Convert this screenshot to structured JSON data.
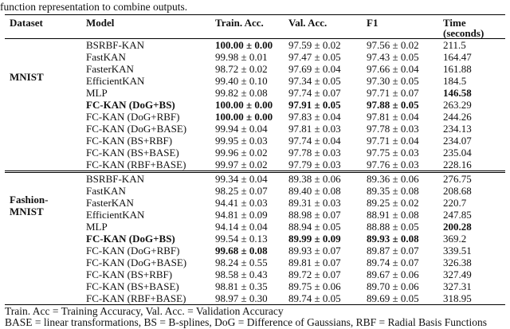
{
  "caption": "function representation to combine outputs.",
  "columns": [
    {
      "label": "Dataset"
    },
    {
      "label": "Model"
    },
    {
      "label": "Train. Acc."
    },
    {
      "label": "Val. Acc."
    },
    {
      "label": "F1"
    },
    {
      "label": "Time",
      "sub": "(seconds)"
    }
  ],
  "sections": [
    {
      "dataset": "MNIST",
      "dataset_lines": [
        "MNIST"
      ],
      "rows": [
        {
          "model": "BSRBF-KAN",
          "train": "100.00 ± 0.00",
          "val": "97.59 ± 0.02",
          "f1": "97.56 ± 0.02",
          "time": "211.5",
          "bold": [
            "train"
          ]
        },
        {
          "model": "FastKAN",
          "train": "99.98 ± 0.01",
          "val": "97.47 ± 0.05",
          "f1": "97.43 ± 0.05",
          "time": "164.47",
          "bold": []
        },
        {
          "model": "FasterKAN",
          "train": "98.72 ± 0.02",
          "val": "97.69 ± 0.04",
          "f1": "97.66 ± 0.04",
          "time": "161.88",
          "bold": []
        },
        {
          "model": "EfficientKAN",
          "train": "99.40 ± 0.10",
          "val": "97.34 ± 0.05",
          "f1": "97.30 ± 0.05",
          "time": "184.5",
          "bold": []
        },
        {
          "model": "MLP",
          "train": "99.82 ± 0.08",
          "val": "97.74 ± 0.07",
          "f1": "97.71 ± 0.07",
          "time": "146.58",
          "bold": [
            "time"
          ]
        },
        {
          "model": "FC-KAN (DoG+BS)",
          "train": "100.00 ± 0.00",
          "val": "97.91 ± 0.05",
          "f1": "97.88 ± 0.05",
          "time": "263.29",
          "bold": [
            "model",
            "train",
            "val",
            "f1"
          ]
        },
        {
          "model": "FC-KAN (DoG+RBF)",
          "train": "100.00 ± 0.00",
          "val": "97.83 ± 0.04",
          "f1": "97.81 ± 0.04",
          "time": "244.26",
          "bold": [
            "train"
          ]
        },
        {
          "model": "FC-KAN (DoG+BASE)",
          "train": "99.94 ± 0.04",
          "val": "97.81 ± 0.03",
          "f1": "97.78 ± 0.03",
          "time": "234.13",
          "bold": []
        },
        {
          "model": "FC-KAN (BS+RBF)",
          "train": "99.95 ± 0.03",
          "val": "97.74 ± 0.04",
          "f1": "97.71 ± 0.04",
          "time": "234.07",
          "bold": []
        },
        {
          "model": "FC-KAN (BS+BASE)",
          "train": "99.96 ± 0.02",
          "val": "97.78 ± 0.03",
          "f1": "97.75 ± 0.03",
          "time": "235.04",
          "bold": []
        },
        {
          "model": "FC-KAN (RBF+BASE)",
          "train": "99.97 ± 0.02",
          "val": "97.79 ± 0.03",
          "f1": "97.76 ± 0.03",
          "time": "228.16",
          "bold": []
        }
      ]
    },
    {
      "dataset": "Fashion-MNIST",
      "dataset_lines": [
        "Fashion-",
        "MNIST"
      ],
      "rows": [
        {
          "model": "BSRBF-KAN",
          "train": "99.34 ± 0.04",
          "val": "89.38 ± 0.06",
          "f1": "89.36 ± 0.06",
          "time": "276.75",
          "bold": []
        },
        {
          "model": "FastKAN",
          "train": "98.25 ± 0.07",
          "val": "89.40 ± 0.08",
          "f1": "89.35 ± 0.08",
          "time": "208.68",
          "bold": []
        },
        {
          "model": "FasterKAN",
          "train": "94.41 ± 0.03",
          "val": "89.31 ± 0.03",
          "f1": "89.25 ± 0.02",
          "time": "220.7",
          "bold": []
        },
        {
          "model": "EfficientKAN",
          "train": "94.81 ± 0.09",
          "val": "88.98 ± 0.07",
          "f1": "88.91 ± 0.08",
          "time": "247.85",
          "bold": []
        },
        {
          "model": "MLP",
          "train": "94.14 ± 0.04",
          "val": "88.94 ± 0.05",
          "f1": "88.88 ± 0.05",
          "time": "200.28",
          "bold": [
            "time"
          ]
        },
        {
          "model": "FC-KAN (DoG+BS)",
          "train": "99.54 ± 0.13",
          "val": "89.99 ± 0.09",
          "f1": "89.93 ± 0.08",
          "time": "369.2",
          "bold": [
            "model",
            "val",
            "f1"
          ]
        },
        {
          "model": "FC-KAN (DoG+RBF)",
          "train": "99.68 ± 0.08",
          "val": "89.93 ± 0.07",
          "f1": "89.87 ± 0.07",
          "time": "339.51",
          "bold": [
            "train"
          ]
        },
        {
          "model": "FC-KAN (DoG+BASE)",
          "train": "98.24 ± 0.55",
          "val": "89.81 ± 0.07",
          "f1": "89.74 ± 0.07",
          "time": "326.38",
          "bold": []
        },
        {
          "model": "FC-KAN (BS+RBF)",
          "train": "98.58 ± 0.43",
          "val": "89.72 ± 0.07",
          "f1": "89.67 ± 0.06",
          "time": "327.49",
          "bold": []
        },
        {
          "model": "FC-KAN (BS+BASE)",
          "train": "98.81 ± 0.35",
          "val": "89.75 ± 0.06",
          "f1": "89.70 ± 0.06",
          "time": "327.31",
          "bold": []
        },
        {
          "model": "FC-KAN (RBF+BASE)",
          "train": "98.97 ± 0.30",
          "val": "89.74 ± 0.05",
          "f1": "89.69 ± 0.05",
          "time": "318.95",
          "bold": []
        }
      ]
    }
  ],
  "footnotes": [
    "Train. Acc = Training Accuracy, Val. Acc. = Validation Accuracy",
    "BASE = linear transformations, BS = B-splines, DoG = Difference of Gaussians, RBF = Radial Basis Functions"
  ]
}
